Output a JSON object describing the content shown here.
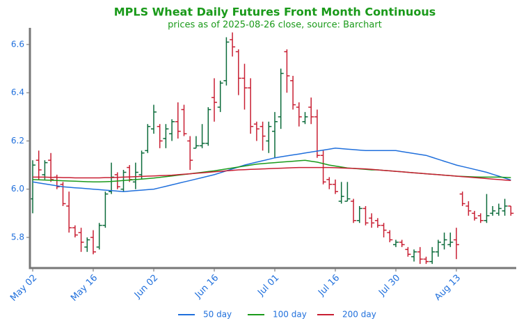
{
  "chart_data": {
    "type": "ohlc",
    "title": "MPLS Wheat Daily Futures Front Month Continuous",
    "subtitle": "prices as of 2025-08-26 close, source: Barchart",
    "categories": [
      "May 02",
      null,
      null,
      null,
      null,
      null,
      null,
      null,
      null,
      null,
      "May 16",
      null,
      null,
      null,
      null,
      null,
      null,
      null,
      null,
      null,
      "Jun 02",
      null,
      null,
      null,
      null,
      null,
      null,
      null,
      null,
      null,
      "Jun 16",
      null,
      null,
      null,
      null,
      null,
      null,
      null,
      null,
      null,
      "Jul 01",
      null,
      null,
      null,
      null,
      null,
      null,
      null,
      null,
      null,
      "Jul 16",
      null,
      null,
      null,
      null,
      null,
      null,
      null,
      null,
      null,
      "Jul 30",
      null,
      null,
      null,
      null,
      null,
      null,
      null,
      null,
      null,
      "Aug 13",
      null,
      null,
      null,
      null,
      null,
      null,
      null,
      null,
      null
    ],
    "open": [
      5.96,
      6.12,
      6.06,
      6.12,
      6.05,
      6.02,
      5.93,
      5.84,
      5.82,
      5.76,
      5.8,
      5.76,
      5.85,
      5.99,
      6.06,
      6.0,
      6.09,
      6.03,
      6.06,
      6.16,
      6.25,
      6.26,
      6.21,
      6.23,
      6.28,
      6.33,
      6.2,
      6.17,
      6.18,
      6.19,
      6.38,
      6.34,
      6.45,
      6.62,
      6.57,
      6.46,
      6.42,
      6.27,
      6.26,
      6.2,
      6.24,
      6.3,
      6.57,
      6.45,
      6.34,
      6.28,
      6.34,
      6.3,
      6.14,
      6.04,
      6.02,
      5.95,
      5.95,
      5.95,
      5.87,
      5.92,
      5.88,
      5.87,
      5.85,
      5.82,
      5.77,
      5.78,
      5.75,
      5.72,
      5.74,
      5.71,
      5.7,
      5.74,
      5.77,
      5.77,
      5.79,
      5.98,
      5.93,
      5.9,
      5.89,
      5.87,
      5.9,
      5.9,
      5.91,
      5.93
    ],
    "high": [
      6.12,
      6.16,
      6.12,
      6.15,
      6.06,
      6.03,
      5.99,
      5.85,
      5.84,
      5.8,
      5.83,
      5.86,
      5.99,
      6.11,
      6.07,
      6.08,
      6.1,
      6.11,
      6.16,
      6.27,
      6.35,
      6.27,
      6.27,
      6.29,
      6.36,
      6.35,
      6.22,
      6.22,
      6.27,
      6.34,
      6.46,
      6.45,
      6.63,
      6.65,
      6.58,
      6.52,
      6.46,
      6.28,
      6.28,
      6.28,
      6.32,
      6.5,
      6.58,
      6.47,
      6.36,
      6.32,
      6.38,
      6.33,
      6.16,
      6.05,
      6.04,
      6.03,
      6.03,
      5.96,
      5.93,
      5.93,
      5.9,
      5.88,
      5.86,
      5.83,
      5.79,
      5.79,
      5.76,
      5.75,
      5.76,
      5.72,
      5.76,
      5.79,
      5.82,
      5.82,
      5.84,
      5.99,
      5.95,
      5.91,
      5.9,
      5.98,
      5.93,
      5.94,
      5.96,
      5.93
    ],
    "low": [
      5.9,
      6.04,
      6.04,
      6.03,
      6.0,
      5.93,
      5.82,
      5.8,
      5.74,
      5.74,
      5.73,
      5.75,
      5.84,
      5.98,
      6.0,
      5.99,
      6.03,
      6.0,
      6.04,
      6.15,
      6.23,
      6.17,
      6.17,
      6.2,
      6.21,
      6.22,
      6.08,
      6.17,
      6.17,
      6.18,
      6.28,
      6.32,
      6.43,
      6.55,
      6.39,
      6.33,
      6.23,
      6.2,
      6.16,
      6.15,
      6.13,
      6.25,
      6.4,
      6.33,
      6.26,
      6.27,
      6.27,
      6.13,
      6.02,
      6.0,
      5.98,
      5.94,
      5.95,
      5.86,
      5.86,
      5.85,
      5.84,
      5.84,
      5.8,
      5.78,
      5.76,
      5.76,
      5.72,
      5.7,
      5.69,
      5.69,
      5.69,
      5.72,
      5.75,
      5.76,
      5.71,
      5.93,
      5.89,
      5.87,
      5.86,
      5.86,
      5.89,
      5.89,
      5.89,
      5.89
    ],
    "close": [
      6.1,
      6.08,
      6.11,
      6.04,
      6.01,
      5.94,
      5.84,
      5.81,
      5.78,
      5.79,
      5.74,
      5.85,
      5.98,
      6.05,
      6.01,
      6.07,
      6.04,
      6.07,
      6.15,
      6.26,
      6.32,
      6.2,
      6.25,
      6.28,
      6.24,
      6.23,
      6.12,
      6.18,
      6.19,
      6.33,
      6.36,
      6.44,
      6.61,
      6.59,
      6.46,
      6.42,
      6.26,
      6.25,
      6.22,
      6.26,
      6.28,
      6.48,
      6.47,
      6.35,
      6.3,
      6.3,
      6.3,
      6.14,
      6.03,
      6.02,
      5.99,
      5.97,
      5.96,
      5.87,
      5.92,
      5.86,
      5.86,
      5.85,
      5.83,
      5.79,
      5.78,
      5.77,
      5.73,
      5.74,
      5.71,
      5.7,
      5.74,
      5.78,
      5.79,
      5.78,
      5.77,
      5.94,
      5.91,
      5.88,
      5.87,
      5.89,
      5.91,
      5.92,
      5.93,
      5.9
    ],
    "up_color": "#0b6b3a",
    "down_color": "#c81e32",
    "series": [
      {
        "name": "50 day",
        "color": "#1f6fdc",
        "values": [
          6.03,
          6.026,
          6.022,
          6.018,
          6.014,
          6.01,
          6.008,
          6.006,
          6.004,
          6.002,
          6.0,
          5.998,
          5.996,
          5.994,
          5.992,
          5.99,
          5.992,
          5.994,
          5.996,
          5.998,
          6.0,
          6.006,
          6.012,
          6.018,
          6.024,
          6.03,
          6.036,
          6.042,
          6.048,
          6.054,
          6.06,
          6.068,
          6.076,
          6.084,
          6.092,
          6.1,
          6.106,
          6.112,
          6.118,
          6.124,
          6.13,
          6.134,
          6.138,
          6.142,
          6.146,
          6.15,
          6.154,
          6.158,
          6.162,
          6.166,
          6.17,
          6.168,
          6.166,
          6.164,
          6.162,
          6.16,
          6.16,
          6.16,
          6.16,
          6.16,
          6.16,
          6.156,
          6.152,
          6.148,
          6.144,
          6.14,
          6.132,
          6.124,
          6.116,
          6.108,
          6.1,
          6.094,
          6.088,
          6.082,
          6.076,
          6.07,
          6.062,
          6.054,
          6.046,
          6.038
        ]
      },
      {
        "name": "100 day",
        "color": "#1a9a1a",
        "values": [
          6.04,
          6.039,
          6.038,
          6.037,
          6.036,
          6.035,
          6.034,
          6.033,
          6.032,
          6.031,
          6.03,
          6.03,
          6.031,
          6.032,
          6.034,
          6.036,
          6.038,
          6.04,
          6.042,
          6.044,
          6.046,
          6.049,
          6.052,
          6.055,
          6.058,
          6.061,
          6.064,
          6.067,
          6.07,
          6.073,
          6.076,
          6.08,
          6.084,
          6.088,
          6.092,
          6.096,
          6.1,
          6.104,
          6.106,
          6.108,
          6.11,
          6.112,
          6.114,
          6.116,
          6.118,
          6.12,
          6.116,
          6.112,
          6.106,
          6.1,
          6.096,
          6.092,
          6.088,
          6.086,
          6.084,
          6.082,
          6.08,
          6.08,
          6.078,
          6.076,
          6.074,
          6.072,
          6.07,
          6.068,
          6.066,
          6.064,
          6.062,
          6.06,
          6.058,
          6.056,
          6.054,
          6.053,
          6.052,
          6.051,
          6.05,
          6.05,
          6.05,
          6.05,
          6.049,
          6.048
        ]
      },
      {
        "name": "200 day",
        "color": "#c81e32",
        "values": [
          6.05,
          6.05,
          6.05,
          6.049,
          6.049,
          6.048,
          6.048,
          6.047,
          6.047,
          6.047,
          6.047,
          6.047,
          6.048,
          6.048,
          6.049,
          6.05,
          6.051,
          6.052,
          6.053,
          6.054,
          6.055,
          6.056,
          6.057,
          6.058,
          6.06,
          6.062,
          6.064,
          6.066,
          6.068,
          6.07,
          6.072,
          6.074,
          6.076,
          6.078,
          6.08,
          6.081,
          6.082,
          6.083,
          6.084,
          6.085,
          6.086,
          6.087,
          6.088,
          6.089,
          6.09,
          6.09,
          6.09,
          6.09,
          6.09,
          6.09,
          6.089,
          6.088,
          6.087,
          6.086,
          6.085,
          6.084,
          6.082,
          6.08,
          6.078,
          6.076,
          6.074,
          6.072,
          6.07,
          6.068,
          6.066,
          6.064,
          6.062,
          6.06,
          6.058,
          6.056,
          6.054,
          6.052,
          6.05,
          6.048,
          6.046,
          6.044,
          6.042,
          6.04,
          6.038,
          6.036
        ]
      }
    ],
    "ylim": [
      5.673,
      6.669
    ],
    "yticks": [
      5.8,
      {
        "value": 6,
        "label": "6.0"
      },
      6.2,
      6.4,
      6.6
    ],
    "grid": false,
    "legend": "bottom"
  }
}
